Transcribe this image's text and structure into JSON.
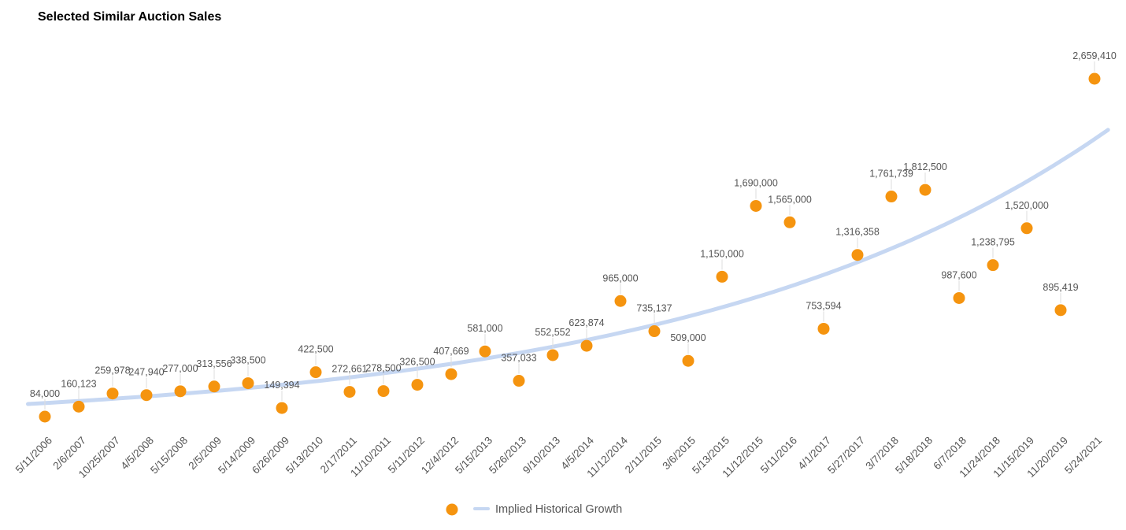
{
  "chart_data": {
    "type": "scatter",
    "title": "Selected Similar Auction Sales",
    "xlabel": "",
    "ylabel": "",
    "ylim": [
      0,
      2659410
    ],
    "grid": false,
    "legend_position": "bottom",
    "categories": [
      "5/11/2006",
      "2/6/2007",
      "10/25/2007",
      "4/5/2008",
      "5/15/2008",
      "2/5/2009",
      "5/14/2009",
      "6/26/2009",
      "5/13/2010",
      "2/17/2011",
      "11/10/2011",
      "5/11/2012",
      "12/4/2012",
      "5/15/2013",
      "5/26/2013",
      "9/10/2013",
      "4/5/2014",
      "11/12/2014",
      "2/11/2015",
      "3/6/2015",
      "5/13/2015",
      "11/12/2015",
      "5/11/2016",
      "4/1/2017",
      "5/27/2017",
      "3/7/2018",
      "5/18/2018",
      "6/7/2018",
      "11/24/2018",
      "11/15/2019",
      "11/20/2019",
      "5/24/2021"
    ],
    "series": [
      {
        "name": "",
        "color": "#F5940F",
        "values": [
          84000,
          160123,
          259978,
          247940,
          277000,
          313556,
          338500,
          149394,
          422500,
          272661,
          278500,
          326500,
          407669,
          581000,
          357033,
          552552,
          623874,
          965000,
          735137,
          509000,
          1150000,
          1690000,
          1565000,
          753594,
          1316358,
          1761739,
          1812500,
          987600,
          1238795,
          1520000,
          895419,
          2659410
        ]
      },
      {
        "name": "Implied Historical Growth",
        "type": "line",
        "color": "#C6D7F2",
        "start_value": 180000,
        "end_value": 2270000
      }
    ]
  }
}
